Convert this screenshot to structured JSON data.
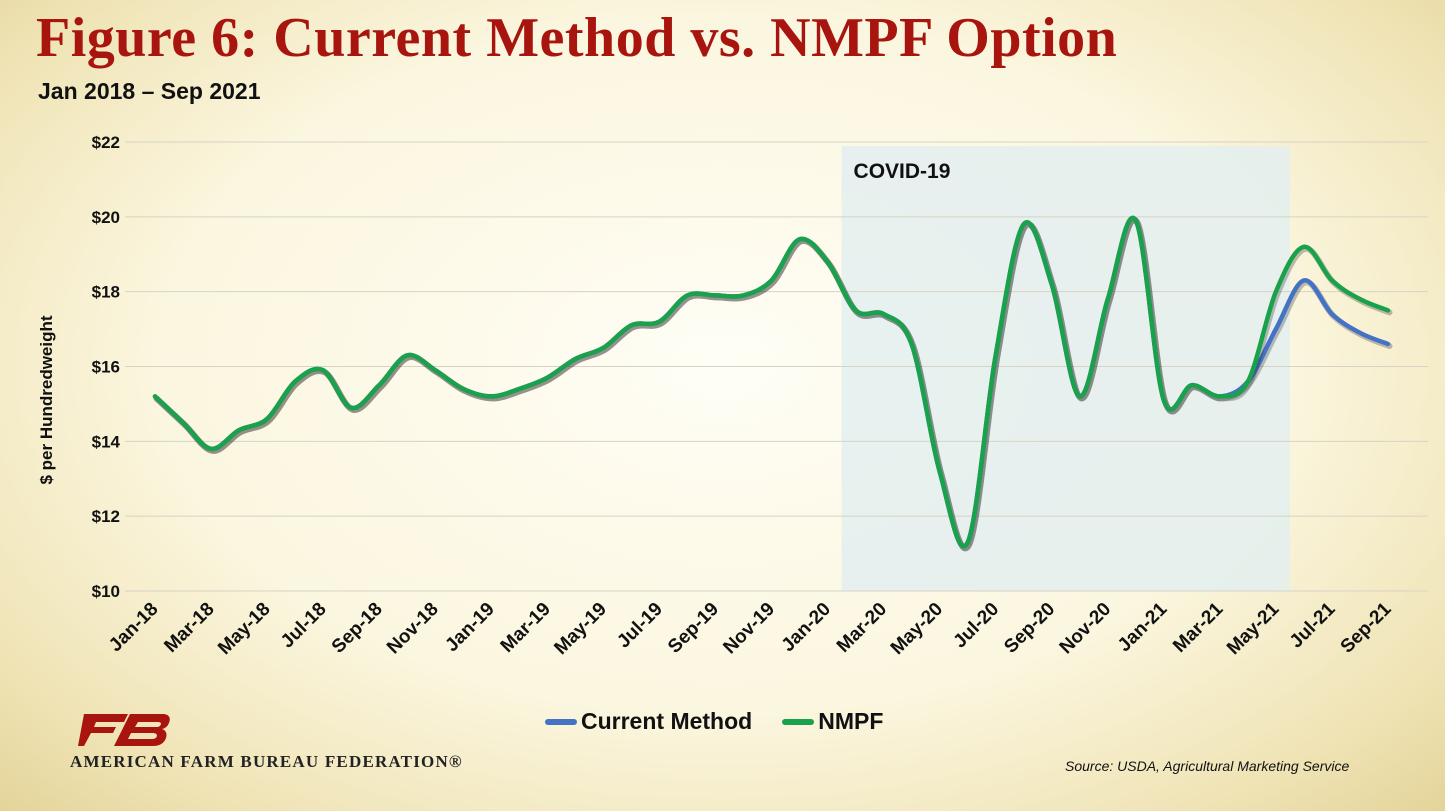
{
  "header": {
    "title": "Figure 6: Current Method vs. NMPF Option",
    "subtitle": "Jan 2018 – Sep 2021"
  },
  "footer": {
    "org_name": "AMERICAN FARM BUREAU FEDERATION®",
    "source": "Source: USDA, Agricultural Marketing Service"
  },
  "colors": {
    "title": "#a8150f",
    "current_method": "#4472c4",
    "nmpf": "#1aa14b",
    "covid_shade": "#e3eeee",
    "logo": "#a8150f"
  },
  "chart_data": {
    "type": "line",
    "title": "",
    "xlabel": "",
    "ylabel": "$ per Hundredweight",
    "ylim": [
      10,
      22
    ],
    "yticks": [
      10,
      12,
      14,
      16,
      18,
      20,
      22
    ],
    "ytick_labels": [
      "$10",
      "$12",
      "$14",
      "$16",
      "$18",
      "$20",
      "$22"
    ],
    "grid": true,
    "legend": "bottom",
    "x": [
      "Jan-18",
      "Feb-18",
      "Mar-18",
      "Apr-18",
      "May-18",
      "Jun-18",
      "Jul-18",
      "Aug-18",
      "Sep-18",
      "Oct-18",
      "Nov-18",
      "Dec-18",
      "Jan-19",
      "Feb-19",
      "Mar-19",
      "Apr-19",
      "May-19",
      "Jun-19",
      "Jul-19",
      "Aug-19",
      "Sep-19",
      "Oct-19",
      "Nov-19",
      "Dec-19",
      "Jan-20",
      "Feb-20",
      "Mar-20",
      "Apr-20",
      "May-20",
      "Jun-20",
      "Jul-20",
      "Aug-20",
      "Sep-20",
      "Oct-20",
      "Nov-20",
      "Dec-20",
      "Jan-21",
      "Feb-21",
      "Mar-21",
      "Apr-21",
      "May-21",
      "Jun-21",
      "Jul-21",
      "Aug-21",
      "Sep-21"
    ],
    "xtick_labels": [
      "Jan-18",
      "Mar-18",
      "May-18",
      "Jul-18",
      "Sep-18",
      "Nov-18",
      "Jan-19",
      "Mar-19",
      "May-19",
      "Jul-19",
      "Sep-19",
      "Nov-19",
      "Jan-20",
      "Mar-20",
      "May-20",
      "Jul-20",
      "Sep-20",
      "Nov-20",
      "Jan-21",
      "Mar-21",
      "May-21",
      "Jul-21",
      "Sep-21"
    ],
    "series": [
      {
        "name": "Current Method",
        "values": [
          15.2,
          14.5,
          13.8,
          14.3,
          14.6,
          15.6,
          15.9,
          14.9,
          15.5,
          16.3,
          15.9,
          15.4,
          15.2,
          15.4,
          15.7,
          16.2,
          16.5,
          17.1,
          17.2,
          17.9,
          17.9,
          17.9,
          18.3,
          19.4,
          18.8,
          17.5,
          17.4,
          16.6,
          13.2,
          11.3,
          16.3,
          19.8,
          18.2,
          15.2,
          17.8,
          19.9,
          15.1,
          15.5,
          15.2,
          15.6,
          17.0,
          18.3,
          17.4,
          16.9,
          16.6
        ]
      },
      {
        "name": "NMPF",
        "values": [
          15.2,
          14.5,
          13.8,
          14.3,
          14.6,
          15.6,
          15.9,
          14.9,
          15.5,
          16.3,
          15.9,
          15.4,
          15.2,
          15.4,
          15.7,
          16.2,
          16.5,
          17.1,
          17.2,
          17.9,
          17.9,
          17.9,
          18.3,
          19.4,
          18.8,
          17.5,
          17.4,
          16.6,
          13.2,
          11.3,
          16.3,
          19.8,
          18.2,
          15.2,
          17.8,
          19.9,
          15.1,
          15.5,
          15.2,
          15.6,
          18.0,
          19.2,
          18.3,
          17.8,
          17.5
        ]
      }
    ],
    "annotations": [
      {
        "text": "COVID-19",
        "x_start": "Feb-20",
        "x_end": "May-21",
        "type": "shaded-region"
      }
    ]
  }
}
